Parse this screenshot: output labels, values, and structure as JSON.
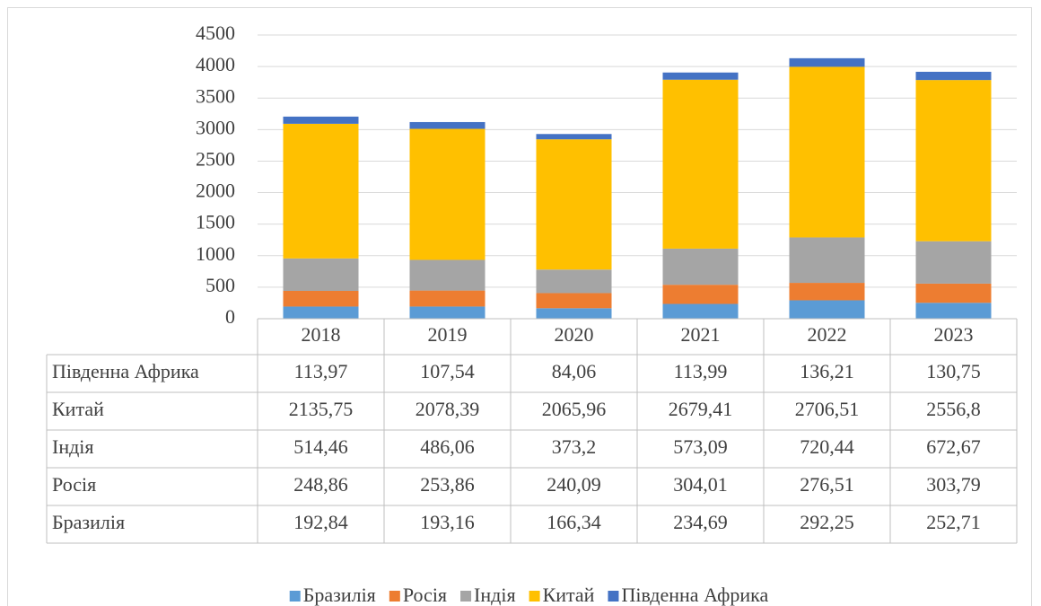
{
  "chart_data": {
    "type": "bar",
    "stacked": true,
    "categories": [
      "2018",
      "2019",
      "2020",
      "2021",
      "2022",
      "2023"
    ],
    "series": [
      {
        "name": "Бразилія",
        "color": "#5b9bd5",
        "values": [
          192.84,
          193.16,
          166.34,
          234.69,
          292.25,
          252.71
        ],
        "value_labels": [
          "192,84",
          "193,16",
          "166,34",
          "234,69",
          "292,25",
          "252,71"
        ]
      },
      {
        "name": "Росія",
        "color": "#ed7d31",
        "values": [
          248.86,
          253.86,
          240.09,
          304.01,
          276.51,
          303.79
        ],
        "value_labels": [
          "248,86",
          "253,86",
          "240,09",
          "304,01",
          "276,51",
          "303,79"
        ]
      },
      {
        "name": "Індія",
        "color": "#a5a5a5",
        "values": [
          514.46,
          486.06,
          373.2,
          573.09,
          720.44,
          672.67
        ],
        "value_labels": [
          "514,46",
          "486,06",
          "373,2",
          "573,09",
          "720,44",
          "672,67"
        ]
      },
      {
        "name": "Китай",
        "color": "#ffc000",
        "values": [
          2135.75,
          2078.39,
          2065.96,
          2679.41,
          2706.51,
          2556.8
        ],
        "value_labels": [
          "2135,75",
          "2078,39",
          "2065,96",
          "2679,41",
          "2706,51",
          "2556,8"
        ]
      },
      {
        "name": "Південна Африка",
        "color": "#4472c4",
        "values": [
          113.97,
          107.54,
          84.06,
          113.99,
          136.21,
          130.75
        ],
        "value_labels": [
          "113,97",
          "107,54",
          "84,06",
          "113,99",
          "136,21",
          "130,75"
        ]
      }
    ],
    "ylim": [
      0,
      4500
    ],
    "yticks": [
      0,
      500,
      1000,
      1500,
      2000,
      2500,
      3000,
      3500,
      4000,
      4500
    ],
    "grid": true,
    "data_table": true,
    "legend": "bottom"
  }
}
